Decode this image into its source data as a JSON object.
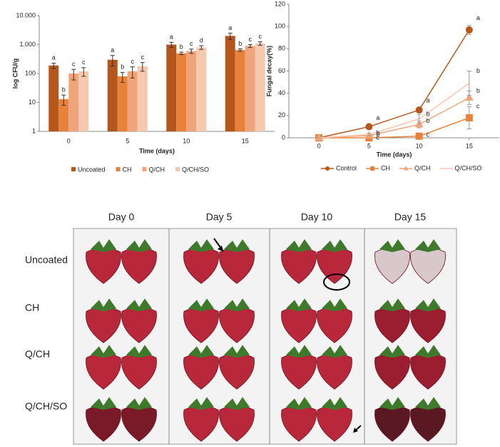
{
  "chart_data": [
    {
      "type": "bar",
      "ylabel": "log CFU/g",
      "xlabel": "Time (days)",
      "log_scale": true,
      "categories": [
        "0",
        "5",
        "10",
        "15"
      ],
      "ylim": [
        1,
        10000
      ],
      "yticks": [
        1,
        10,
        100,
        {
          "value": 1000,
          "label": "1.000"
        },
        {
          "value": 10000,
          "label": "10.000"
        }
      ],
      "legend": "bottom",
      "series": [
        {
          "name": "Uncoated",
          "color": "#b5561d",
          "values": [
            190,
            300,
            1000,
            2000
          ],
          "errors": [
            40,
            120,
            200,
            500
          ],
          "letters": [
            "a",
            "a",
            "a",
            "a"
          ]
        },
        {
          "name": "CH",
          "color": "#e8823a",
          "values": [
            13,
            80,
            500,
            650
          ],
          "errors": [
            5,
            30,
            50,
            60
          ],
          "letters": [
            "b",
            "b",
            "b",
            "b"
          ]
        },
        {
          "name": "Q/CH",
          "color": "#f0a47a",
          "values": [
            100,
            120,
            600,
            900
          ],
          "errors": [
            40,
            50,
            100,
            100
          ],
          "letters": [
            "c",
            "c",
            "c",
            "c"
          ]
        },
        {
          "name": "Q/CH/SO",
          "color": "#f6c8b0",
          "values": [
            120,
            180,
            800,
            1100
          ],
          "errors": [
            40,
            60,
            120,
            150
          ],
          "letters": [
            "c",
            "c",
            "d",
            "c"
          ]
        }
      ]
    },
    {
      "type": "line",
      "ylabel": "Fungal decay(%)",
      "xlabel": "Time (days)",
      "x": [
        0,
        5,
        10,
        15
      ],
      "xlim": [
        -3,
        18
      ],
      "xticks": [
        0,
        5,
        10,
        15
      ],
      "ylim": [
        0,
        120
      ],
      "yticks": [
        0,
        20,
        40,
        60,
        80,
        100,
        120
      ],
      "legend": "bottom",
      "series": [
        {
          "name": "Control",
          "color": "#b5561d",
          "marker": "circle",
          "values": [
            0,
            10,
            25,
            97
          ],
          "errors": [
            0,
            1,
            2,
            4
          ],
          "letters": [
            null,
            "a",
            "a",
            "a"
          ]
        },
        {
          "name": "CH",
          "color": "#e8823a",
          "marker": "square",
          "values": [
            0,
            0,
            1.5,
            18
          ],
          "errors": [
            0,
            0,
            1,
            10
          ],
          "letters": [
            null,
            "c",
            "c",
            "c"
          ]
        },
        {
          "name": "Q/CH",
          "color": "#f0a47a",
          "marker": "triangle",
          "values": [
            0,
            2,
            12,
            36
          ],
          "errors": [
            0,
            1,
            3,
            6
          ],
          "letters": [
            null,
            "b",
            "b",
            "b"
          ]
        },
        {
          "name": "Q/CH/SO",
          "color": "#f6c8b0",
          "marker": "none",
          "values": [
            0,
            3,
            17,
            49
          ],
          "errors": [
            0,
            1,
            4,
            11
          ],
          "letters": [
            null,
            "b",
            "b",
            "b"
          ]
        }
      ]
    }
  ],
  "photo_panel": {
    "columns": [
      "Day 0",
      "Day 5",
      "Day 10",
      "Day 15"
    ],
    "rows": [
      "Uncoated",
      "CH",
      "Q/CH",
      "Q/CH/SO"
    ]
  }
}
